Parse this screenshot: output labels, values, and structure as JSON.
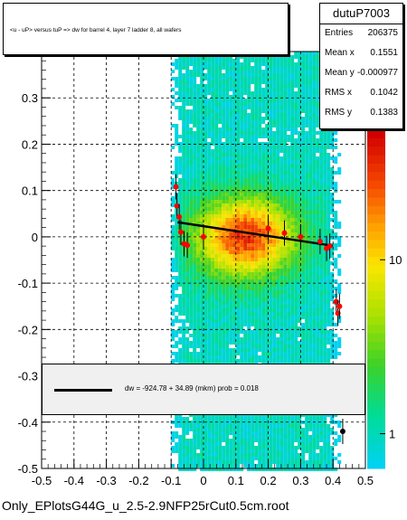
{
  "title": "<u - uP>       versus  tuP =>  dw for barrel 4, layer 7 ladder 8, all wafers",
  "stats": {
    "name": "dutuP7003",
    "rows": [
      {
        "key": "Entries",
        "value": "206375"
      },
      {
        "key": "Mean x",
        "value": "0.1551"
      },
      {
        "key": "Mean y",
        "value": "-0.000977"
      },
      {
        "key": "RMS x",
        "value": "0.1042"
      },
      {
        "key": "RMS y",
        "value": "0.1383"
      }
    ]
  },
  "fit_label": "dw = -924.78 + 34.89 (mkm) prob = 0.018",
  "footer": "Only_EPlotsG44G_u_2.5-2.9NFP25rCut0.5cm.root",
  "chart_data": {
    "type": "heatmap",
    "xlim": [
      -0.5,
      0.5
    ],
    "ylim": [
      -0.5,
      0.4
    ],
    "x_ticks": [
      "-0.5",
      "-0.4",
      "-0.3",
      "-0.2",
      "-0.1",
      "0",
      "0.1",
      "0.2",
      "0.3",
      "0.4",
      "0.5"
    ],
    "y_ticks": [
      "-0.5",
      "-0.4",
      "-0.3",
      "-0.2",
      "-0.1",
      "0",
      "0.1",
      "0.2",
      "0.3"
    ],
    "z_scale": "log",
    "z_ticks": [
      "1",
      "10"
    ],
    "grid": true,
    "density": {
      "x_range": [
        -0.1,
        0.42
      ],
      "center_x": 0.13,
      "center_y": 0.0,
      "sigma_x": 0.11,
      "sigma_y": 0.06
    },
    "fit": {
      "intercept": 0.023,
      "slope": -0.106,
      "x_range": [
        -0.08,
        0.4
      ]
    },
    "profile_points": [
      {
        "x": -0.085,
        "y": 0.108
      },
      {
        "x": -0.082,
        "y": 0.067
      },
      {
        "x": -0.075,
        "y": 0.043
      },
      {
        "x": -0.07,
        "y": 0.01
      },
      {
        "x": -0.06,
        "y": -0.015
      },
      {
        "x": -0.05,
        "y": -0.018
      },
      {
        "x": 0.0,
        "y": 0.0
      },
      {
        "x": 0.2,
        "y": 0.018
      },
      {
        "x": 0.25,
        "y": 0.008
      },
      {
        "x": 0.3,
        "y": 0.0
      },
      {
        "x": 0.36,
        "y": -0.01
      },
      {
        "x": 0.38,
        "y": -0.025
      },
      {
        "x": 0.39,
        "y": -0.02
      },
      {
        "x": 0.41,
        "y": -0.14
      },
      {
        "x": 0.415,
        "y": -0.165
      },
      {
        "x": 0.42,
        "y": -0.15
      },
      {
        "x": 0.43,
        "y": -0.42
      }
    ]
  }
}
